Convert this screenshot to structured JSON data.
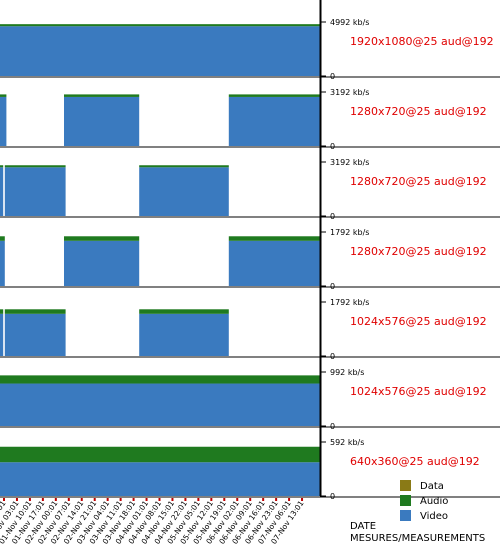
{
  "chart_data": {
    "type": "area",
    "stacked": true,
    "xlabel": "DATE\nMESURES/MEASUREMENTS",
    "legend": {
      "placement": "bottom-right",
      "entries": [
        {
          "name": "Data",
          "color": "#8a7a16"
        },
        {
          "name": "Audio",
          "color": "#1f7a1f"
        },
        {
          "name": "Video",
          "color": "#3a7abf"
        }
      ]
    },
    "x_ticks": [
      "31-Oct 20:01",
      "01-Nov 03:01",
      "01-Nov 10:01",
      "01-Nov 17:01",
      "02-Nov 00:01",
      "02-Nov 07:01",
      "02-Nov 14:01",
      "02-Nov 21:01",
      "03-Nov 04:01",
      "03-Nov 11:01",
      "03-Nov 18:01",
      "04-Nov 01:01",
      "04-Nov 08:01",
      "04-Nov 15:01",
      "04-Nov 22:01",
      "05-Nov 05:01",
      "05-Nov 12:01",
      "05-Nov 19:01",
      "06-Nov 02:01",
      "06-Nov 09:01",
      "06-Nov 16:01",
      "06-Nov 23:01",
      "07-Nov 06:01",
      "07-Nov 13:01"
    ],
    "panels": [
      {
        "name": "1920x1080@25 aud@192",
        "ymax_label": "4992 kb/s",
        "ymin_label": "0",
        "ymax": 4992,
        "segments": [
          {
            "x0": 0.0,
            "x1": 1.0,
            "video": 4600,
            "audio": 192
          }
        ]
      },
      {
        "name": "1280x720@25 aud@192",
        "ymax_label": "3192 kb/s",
        "ymin_label": "0",
        "ymax": 3192,
        "segments": [
          {
            "x0": 0.0,
            "x1": 0.02,
            "video": 2900,
            "audio": 150
          },
          {
            "x0": 0.2,
            "x1": 0.435,
            "video": 2900,
            "audio": 150
          },
          {
            "x0": 0.715,
            "x1": 1.0,
            "video": 2900,
            "audio": 150
          }
        ]
      },
      {
        "name": "1280x720@25 aud@192",
        "ymax_label": "3192 kb/s",
        "ymin_label": "0",
        "ymax": 3192,
        "segments": [
          {
            "x0": 0.0,
            "x1": 0.01,
            "video": 2880,
            "audio": 120
          },
          {
            "x0": 0.015,
            "x1": 0.205,
            "video": 2880,
            "audio": 120
          },
          {
            "x0": 0.435,
            "x1": 0.715,
            "video": 2880,
            "audio": 120
          }
        ]
      },
      {
        "name": "1280x720@25 aud@192",
        "ymax_label": "1792 kb/s",
        "ymin_label": "0",
        "ymax": 1792,
        "segments": [
          {
            "x0": 0.0,
            "x1": 0.015,
            "video": 1500,
            "audio": 150
          },
          {
            "x0": 0.2,
            "x1": 0.435,
            "video": 1500,
            "audio": 150
          },
          {
            "x0": 0.715,
            "x1": 1.0,
            "video": 1500,
            "audio": 150
          }
        ]
      },
      {
        "name": "1024x576@25 aud@192",
        "ymax_label": "1792 kb/s",
        "ymin_label": "0",
        "ymax": 1792,
        "segments": [
          {
            "x0": 0.0,
            "x1": 0.01,
            "video": 1400,
            "audio": 150
          },
          {
            "x0": 0.015,
            "x1": 0.205,
            "video": 1400,
            "audio": 150
          },
          {
            "x0": 0.435,
            "x1": 0.715,
            "video": 1400,
            "audio": 150
          }
        ]
      },
      {
        "name": "1024x576@25 aud@192",
        "ymax_label": "992 kb/s",
        "ymin_label": "0",
        "ymax": 992,
        "segments": [
          {
            "x0": 0.0,
            "x1": 1.0,
            "video": 780,
            "audio": 150
          }
        ]
      },
      {
        "name": "640x360@25 aud@192",
        "ymax_label": "592 kb/s",
        "ymin_label": "0",
        "ymax": 592,
        "segments": [
          {
            "x0": 0.0,
            "x1": 1.0,
            "video": 370,
            "audio": 170
          }
        ]
      }
    ]
  }
}
